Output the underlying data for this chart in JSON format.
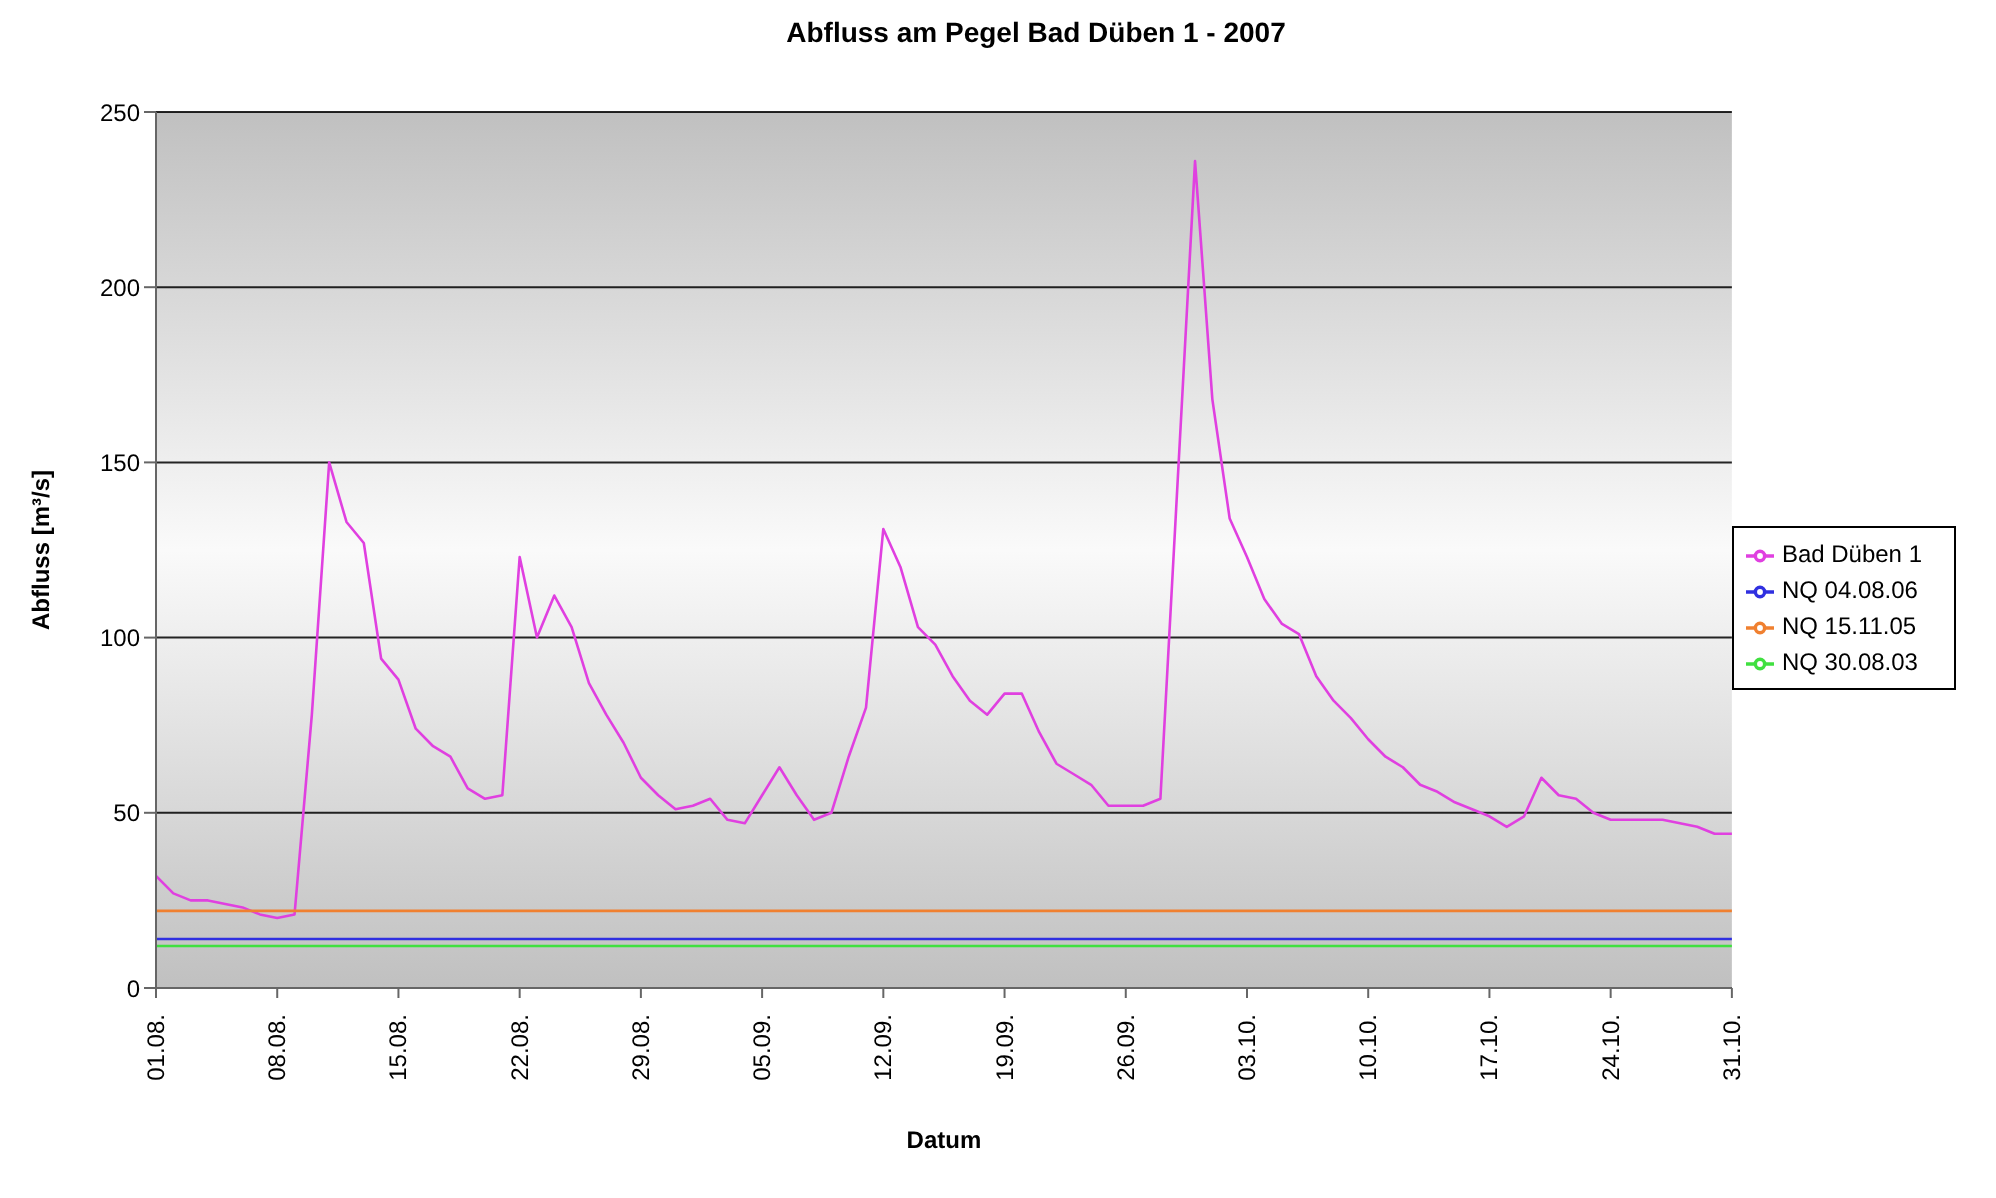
{
  "chart_data": {
    "type": "line",
    "title": "Abfluss am Pegel Bad Düben 1 - 2007",
    "xlabel": "Datum",
    "ylabel": "Abfluss [m³/s]",
    "x": [
      "2007-08-01",
      "2007-08-02",
      "2007-08-03",
      "2007-08-04",
      "2007-08-05",
      "2007-08-06",
      "2007-08-07",
      "2007-08-08",
      "2007-08-09",
      "2007-08-10",
      "2007-08-11",
      "2007-08-12",
      "2007-08-13",
      "2007-08-14",
      "2007-08-15",
      "2007-08-16",
      "2007-08-17",
      "2007-08-18",
      "2007-08-19",
      "2007-08-20",
      "2007-08-21",
      "2007-08-22",
      "2007-08-23",
      "2007-08-24",
      "2007-08-25",
      "2007-08-26",
      "2007-08-27",
      "2007-08-28",
      "2007-08-29",
      "2007-08-30",
      "2007-08-31",
      "2007-09-01",
      "2007-09-02",
      "2007-09-03",
      "2007-09-04",
      "2007-09-05",
      "2007-09-06",
      "2007-09-07",
      "2007-09-08",
      "2007-09-09",
      "2007-09-10",
      "2007-09-11",
      "2007-09-12",
      "2007-09-13",
      "2007-09-14",
      "2007-09-15",
      "2007-09-16",
      "2007-09-17",
      "2007-09-18",
      "2007-09-19",
      "2007-09-20",
      "2007-09-21",
      "2007-09-22",
      "2007-09-23",
      "2007-09-24",
      "2007-09-25",
      "2007-09-26",
      "2007-09-27",
      "2007-09-28",
      "2007-09-29",
      "2007-09-30",
      "2007-10-01",
      "2007-10-02",
      "2007-10-03",
      "2007-10-04",
      "2007-10-05",
      "2007-10-06",
      "2007-10-07",
      "2007-10-08",
      "2007-10-09",
      "2007-10-10",
      "2007-10-11",
      "2007-10-12",
      "2007-10-13",
      "2007-10-14",
      "2007-10-15",
      "2007-10-16",
      "2007-10-17",
      "2007-10-18",
      "2007-10-19",
      "2007-10-20",
      "2007-10-21",
      "2007-10-22",
      "2007-10-23",
      "2007-10-24",
      "2007-10-25",
      "2007-10-26",
      "2007-10-27",
      "2007-10-28",
      "2007-10-29",
      "2007-10-30",
      "2007-10-31"
    ],
    "series": [
      {
        "name": "Bad Düben 1",
        "color": "#e040e0",
        "values": [
          32,
          27,
          25,
          25,
          24,
          23,
          21,
          20,
          21,
          78,
          150,
          133,
          127,
          94,
          88,
          74,
          69,
          66,
          57,
          54,
          55,
          123,
          100,
          112,
          103,
          87,
          78,
          70,
          60,
          55,
          51,
          52,
          54,
          48,
          47,
          55,
          63,
          55,
          48,
          50,
          66,
          80,
          131,
          120,
          103,
          98,
          89,
          82,
          78,
          84,
          84,
          73,
          64,
          61,
          58,
          52,
          52,
          52,
          54,
          145,
          236,
          168,
          134,
          123,
          111,
          104,
          101,
          89,
          82,
          77,
          71,
          66,
          63,
          58,
          56,
          53,
          51,
          49,
          46,
          49,
          60,
          55,
          54,
          50,
          48,
          48,
          48,
          48,
          47,
          46,
          44,
          44
        ]
      },
      {
        "name": "NQ 30.08.03",
        "color": "#40e040",
        "x": [
          "2007-08-01",
          "2007-10-31"
        ],
        "values": [
          12,
          12
        ]
      },
      {
        "name": "NQ 15.11.05",
        "color": "#f08030",
        "x": [
          "2007-08-01",
          "2007-10-31"
        ],
        "values": [
          22,
          22
        ]
      },
      {
        "name": "NQ 04.08.06",
        "color": "#3030e0",
        "x": [
          "2007-08-01",
          "2007-10-31"
        ],
        "values": [
          14,
          14
        ]
      }
    ],
    "xlim": [
      "2007-08-01",
      "2007-10-31"
    ],
    "xticks": [
      {
        "value": "2007-08-01",
        "label": "01.08."
      },
      {
        "value": "2007-08-08",
        "label": "08.08."
      },
      {
        "value": "2007-08-15",
        "label": "15.08."
      },
      {
        "value": "2007-08-22",
        "label": "22.08."
      },
      {
        "value": "2007-08-29",
        "label": "29.08."
      },
      {
        "value": "2007-09-05",
        "label": "05.09."
      },
      {
        "value": "2007-09-12",
        "label": "12.09."
      },
      {
        "value": "2007-09-19",
        "label": "19.09."
      },
      {
        "value": "2007-09-26",
        "label": "26.09."
      },
      {
        "value": "2007-10-03",
        "label": "03.10."
      },
      {
        "value": "2007-10-10",
        "label": "10.10."
      },
      {
        "value": "2007-10-17",
        "label": "17.10."
      },
      {
        "value": "2007-10-24",
        "label": "24.10."
      },
      {
        "value": "2007-10-31",
        "label": "31.10."
      }
    ],
    "ylim": [
      0,
      250
    ],
    "yticks": [
      0,
      50,
      100,
      150,
      200,
      250
    ],
    "grid": "y",
    "legend": "right",
    "marker": "none",
    "line_style": "solid"
  }
}
